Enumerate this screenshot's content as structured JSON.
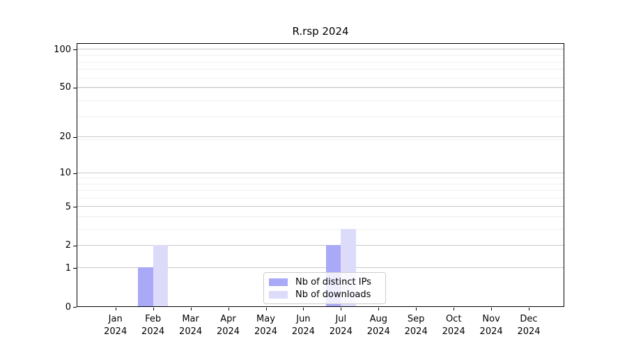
{
  "title": "R.rsp 2024",
  "colors": {
    "bar_distinct_ips": "#a9a9f8",
    "bar_downloads": "#dcdcfa",
    "grid_major": "#c8c8c8",
    "grid_minor": "#efefef",
    "axis_frame": "#000000",
    "legend_border": "#cccccc"
  },
  "legend": {
    "items": [
      "Nb of distinct IPs",
      "Nb of downloads"
    ]
  },
  "chart_data": {
    "type": "bar",
    "title": "R.rsp 2024",
    "categories": [
      "Jan 2024",
      "Feb 2024",
      "Mar 2024",
      "Apr 2024",
      "May 2024",
      "Jun 2024",
      "Jul 2024",
      "Aug 2024",
      "Sep 2024",
      "Oct 2024",
      "Nov 2024",
      "Dec 2024"
    ],
    "series": [
      {
        "name": "Nb of distinct IPs",
        "color": "#a9a9f8",
        "values": [
          0,
          1,
          0,
          0,
          0,
          0,
          2,
          0,
          0,
          0,
          0,
          0
        ]
      },
      {
        "name": "Nb of downloads",
        "color": "#dcdcfa",
        "values": [
          0,
          2,
          0,
          0,
          0,
          0,
          3,
          0,
          0,
          0,
          0,
          0
        ]
      }
    ],
    "xlabel": "",
    "ylabel": "",
    "yscale": "log1p",
    "yticks": [
      0,
      1,
      2,
      5,
      10,
      20,
      50,
      100
    ],
    "ytick_labels": [
      "0",
      "1",
      "2",
      "5",
      "10",
      "20",
      "50",
      "100"
    ],
    "ylim": [
      0,
      109
    ],
    "grid": true,
    "legend_position": "lower center"
  }
}
